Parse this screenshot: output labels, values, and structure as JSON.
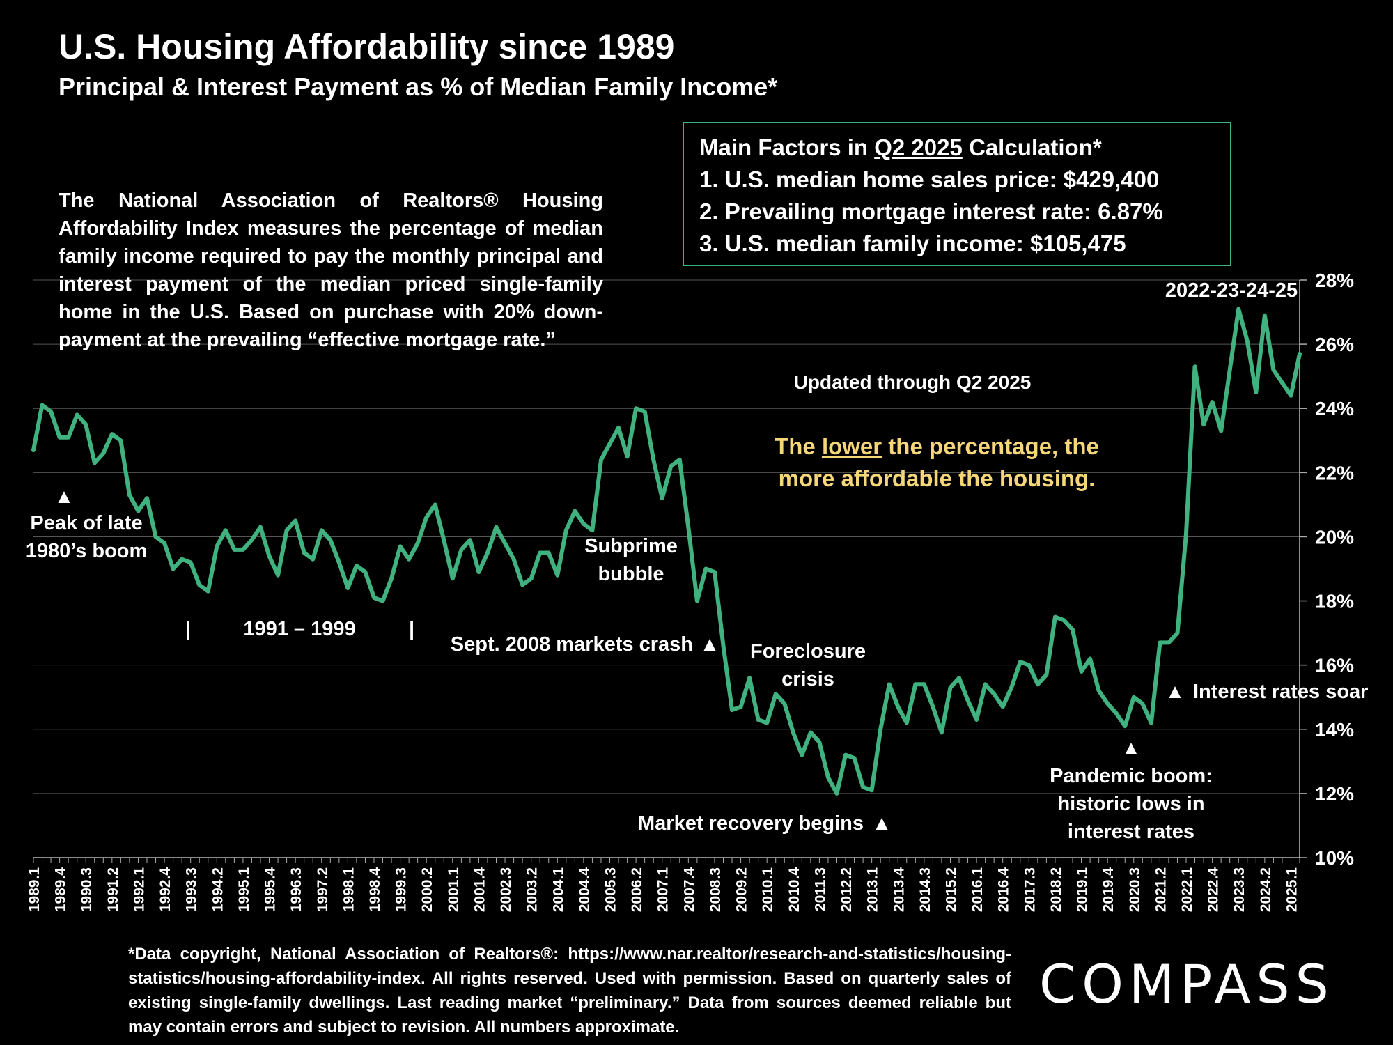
{
  "header": {
    "title": "U.S. Housing Affordability since 1989",
    "subtitle": "Principal & Interest Payment as % of Median Family Income*"
  },
  "description": "The National Association of Realtors® Housing Affordability Index measures the percentage of median family income required to pay the monthly principal and interest payment of the median priced single-family home in the U.S. Based on purchase with 20% down-payment at the prevailing “effective mortgage rate.”",
  "factors_box": {
    "heading_pre": "Main Factors in ",
    "heading_link": "Q2 2025",
    "heading_post": " Calculation*",
    "items": [
      "1.  U.S. median home sales price:  $429,400",
      "2.  Prevailing mortgage interest rate:  6.87%",
      "3.  U.S. median family income:  $105,475"
    ]
  },
  "updated_note": "Updated through Q2 2025",
  "affordability_note": {
    "pre": "The ",
    "underlined": "lower",
    "post_line1": " the percentage, the",
    "line2": "more affordable the housing."
  },
  "footnote": "*Data copyright, National Association of Realtors®: https://www.nar.realtor/research-and-statistics/housing-statistics/housing-affordability-index. All rights reserved. Used with permission. Based on quarterly sales of existing single-family dwellings. Last reading market “preliminary.” Data from sources deemed reliable but may contain errors and subject to revision. All numbers approximate.",
  "logo": "COMPASS",
  "colors": {
    "line": "#3fb27f",
    "accent_text": "#f5d77a",
    "background": "#000000",
    "grid": "#555555"
  },
  "annotations": {
    "peak_1": "Peak of late",
    "peak_2": "1980’s boom",
    "period": "1991 – 1999",
    "subprime_1": "Subprime",
    "subprime_2": "bubble",
    "crash": "Sept. 2008 markets crash",
    "foreclosure_1": "Foreclosure",
    "foreclosure_2": "crisis",
    "recovery": "Market recovery begins",
    "pandemic_1": "Pandemic  boom:",
    "pandemic_2": "historic lows in",
    "pandemic_3": "interest rates",
    "rates": "Interest rates soar",
    "recent": "2022-23-24-25",
    "marker_glyph": "▲",
    "bar_glyph": "|"
  },
  "chart_data": {
    "type": "line",
    "title": "U.S. Housing Affordability since 1989",
    "ylabel": "",
    "xlabel": "",
    "ylim": [
      10,
      28
    ],
    "y_ticks": [
      "10%",
      "12%",
      "14%",
      "16%",
      "18%",
      "20%",
      "22%",
      "24%",
      "26%",
      "28%"
    ],
    "y_axis_side": "right",
    "grid": true,
    "x_tick_labels": [
      "1989.1",
      "1989.4",
      "1990.3",
      "1991.2",
      "1992.1",
      "1992.4",
      "1993.3",
      "1994.2",
      "1995.1",
      "1995.4",
      "1996.3",
      "1997.2",
      "1998.1",
      "1998.4",
      "1999.3",
      "2000.2",
      "2001.1",
      "2001.4",
      "2002.3",
      "2003.2",
      "2004.1",
      "2004.4",
      "2005.3",
      "2006.2",
      "2007.1",
      "2007.4",
      "2008.3",
      "2009.2",
      "2010.1",
      "2010.4",
      "2011.3",
      "2012.2",
      "2013.1",
      "2013.4",
      "2014.3",
      "2015.2",
      "2016.1",
      "2016.4",
      "2017.3",
      "2018.2",
      "2019.1",
      "2019.4",
      "2020.3",
      "2021.2",
      "2022.1",
      "2022.4",
      "2023.3",
      "2024.2",
      "2025.1"
    ],
    "x_start": "1989.1",
    "x_end": "2025.2",
    "series": [
      {
        "values": [
          22.7,
          24.1,
          23.9,
          23.1,
          23.1,
          23.8,
          23.5,
          22.3,
          22.6,
          23.2,
          23.0,
          21.3,
          20.8,
          21.2,
          20.0,
          19.8,
          19.0,
          19.3,
          19.2,
          18.5,
          18.3,
          19.7,
          20.2,
          19.6,
          19.6,
          19.9,
          20.3,
          19.4,
          18.8,
          20.2,
          20.5,
          19.5,
          19.3,
          20.2,
          19.9,
          19.2,
          18.4,
          19.1,
          18.9,
          18.1,
          18.0,
          18.7,
          19.7,
          19.3,
          19.8,
          20.6,
          21.0,
          19.9,
          18.7,
          19.6,
          19.9,
          18.9,
          19.5,
          20.3,
          19.8,
          19.3,
          18.5,
          18.7,
          19.5,
          19.5,
          18.8,
          20.2,
          20.8,
          20.4,
          20.2,
          22.4,
          22.9,
          23.4,
          22.5,
          24.0,
          23.9,
          22.4,
          21.2,
          22.2,
          22.4,
          20.3,
          18.0,
          19.0,
          18.9,
          16.6,
          14.6,
          14.7,
          15.6,
          14.3,
          14.2,
          15.1,
          14.8,
          13.9,
          13.2,
          13.9,
          13.6,
          12.5,
          12.0,
          13.2,
          13.1,
          12.2,
          12.1,
          14.0,
          15.4,
          14.7,
          14.2,
          15.4,
          15.4,
          14.7,
          13.9,
          15.3,
          15.6,
          14.9,
          14.3,
          15.4,
          15.1,
          14.7,
          15.3,
          16.1,
          16.0,
          15.4,
          15.7,
          17.5,
          17.4,
          17.1,
          15.8,
          16.2,
          15.2,
          14.8,
          14.5,
          14.1,
          15.0,
          14.8,
          14.2,
          16.7,
          16.7,
          17.0,
          20.1,
          25.3,
          23.5,
          24.2,
          23.3,
          25.2,
          27.1,
          26.1,
          24.5,
          26.9,
          25.2,
          24.8,
          24.4,
          25.7
        ]
      }
    ]
  }
}
